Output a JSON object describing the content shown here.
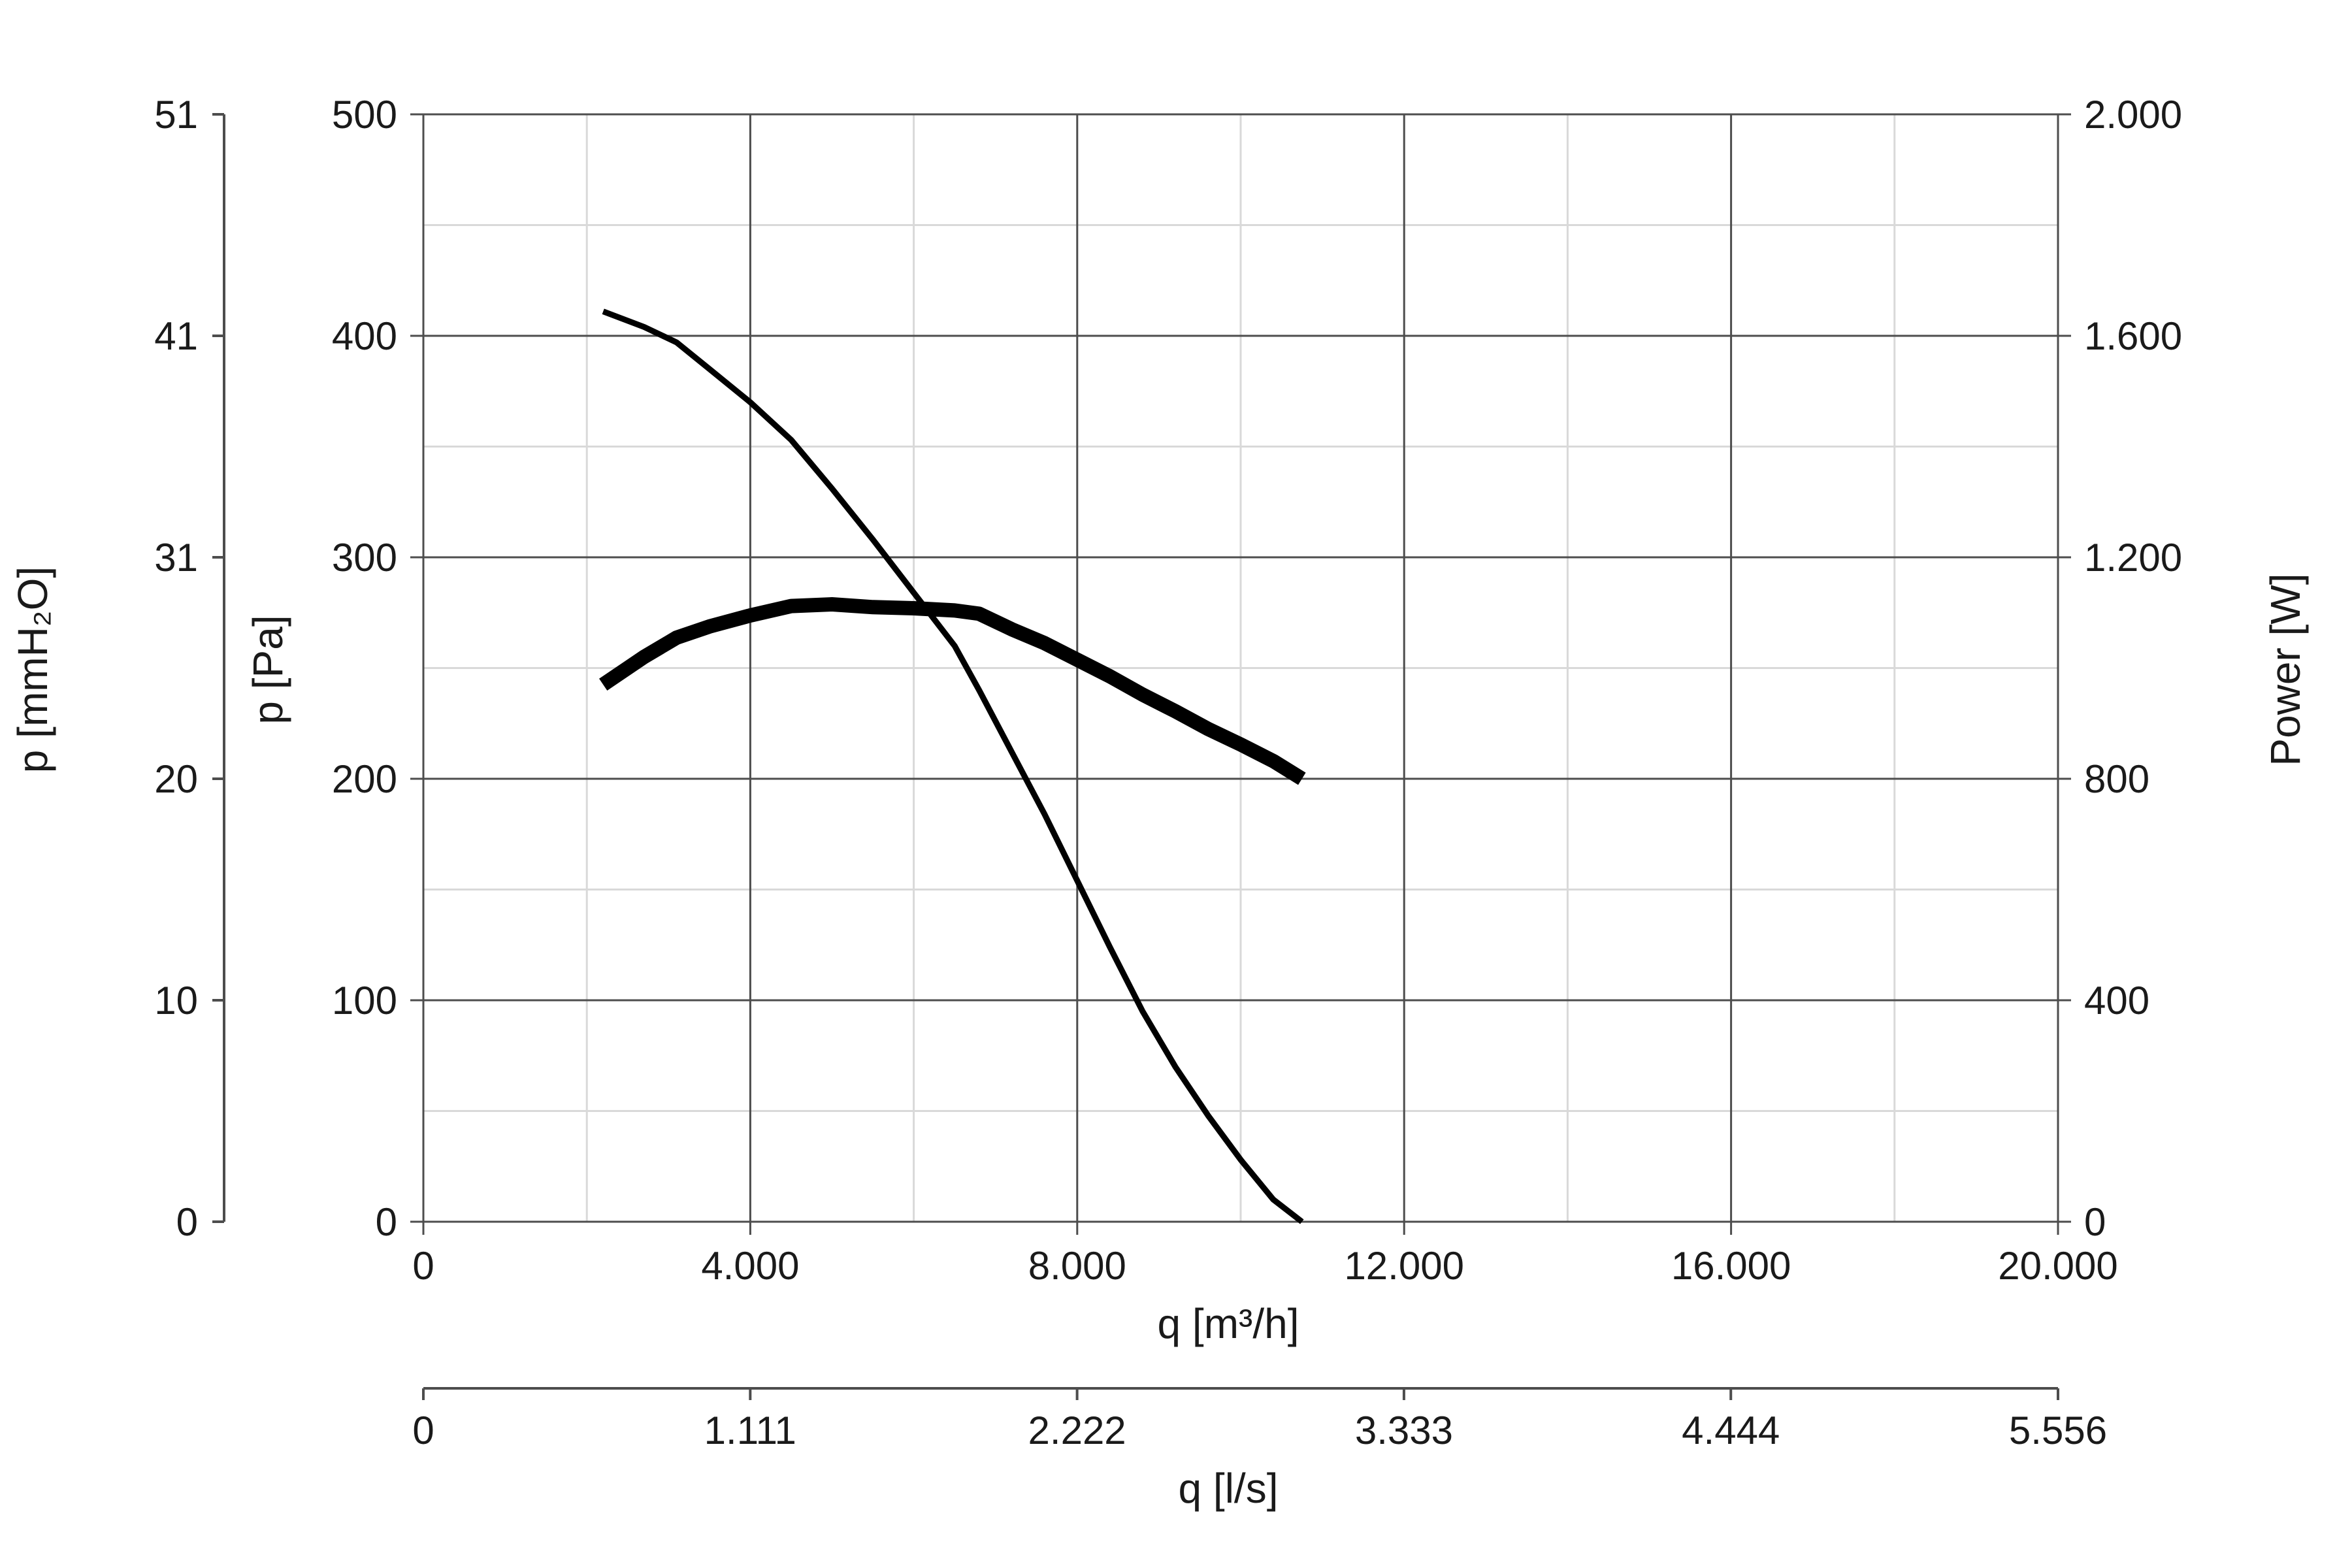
{
  "chart_data": {
    "type": "line",
    "title": "",
    "x_axis": {
      "label": "q [m³/h]",
      "min": 0,
      "max": 20000,
      "ticks": [
        0,
        4000,
        8000,
        12000,
        16000,
        20000
      ],
      "tick_labels": [
        "0",
        "4.000",
        "8.000",
        "12.000",
        "16.000",
        "20.000"
      ],
      "grid": true
    },
    "x2_axis": {
      "label": "q [l/s]",
      "min": 0,
      "max": 5556,
      "ticks": [
        0,
        1111,
        2222,
        3333,
        4444,
        5556
      ],
      "tick_labels": [
        "0",
        "1.111",
        "2.222",
        "3.333",
        "4.444",
        "5.556"
      ]
    },
    "y_axis": {
      "label": "p [Pa]",
      "min": 0,
      "max": 500,
      "ticks": [
        0,
        100,
        200,
        300,
        400,
        500
      ],
      "tick_labels": [
        "0",
        "100",
        "200",
        "300",
        "400",
        "500"
      ],
      "grid": true
    },
    "y_axis_mmh2o": {
      "label": "p [mmH₂O]",
      "min": 0,
      "max": 51,
      "tick_labels": [
        "0",
        "10",
        "20",
        "31",
        "41",
        "51"
      ]
    },
    "y2_axis": {
      "label": "Power [W]",
      "min": 0,
      "max": 2000,
      "ticks": [
        0,
        400,
        800,
        1200,
        1600,
        2000
      ],
      "tick_labels": [
        "0",
        "400",
        "800",
        "1.200",
        "1.600",
        "2.000"
      ]
    },
    "series": [
      {
        "axis": "y",
        "line_width": "thin",
        "x": [
          2200,
          2700,
          3100,
          3500,
          4000,
          4500,
          5000,
          5500,
          6000,
          6500,
          6800,
          7200,
          7600,
          8000,
          8400,
          8800,
          9200,
          9600,
          10000,
          10400,
          10750
        ],
        "y": [
          411,
          404,
          397,
          385,
          370,
          353,
          331,
          308,
          284,
          260,
          240,
          212,
          184,
          154,
          124,
          95,
          70,
          48,
          28,
          10,
          0
        ]
      },
      {
        "axis": "y2",
        "line_width": "thick",
        "x": [
          2200,
          2700,
          3100,
          3500,
          4000,
          4500,
          5000,
          5500,
          6000,
          6500,
          6800,
          7200,
          7600,
          8000,
          8400,
          8800,
          9200,
          9600,
          10000,
          10400,
          10750
        ],
        "y": [
          970,
          1020,
          1055,
          1075,
          1095,
          1112,
          1115,
          1110,
          1108,
          1104,
          1098,
          1070,
          1045,
          1015,
          985,
          952,
          922,
          890,
          862,
          832,
          800
        ]
      }
    ]
  }
}
